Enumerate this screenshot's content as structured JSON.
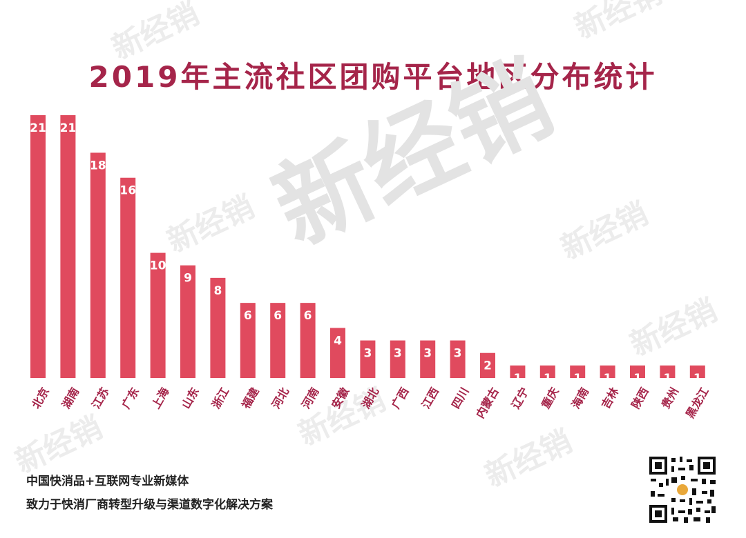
{
  "title": "2019年主流社区团购平台地区分布统计",
  "watermark": "新经销",
  "footer": {
    "line1": "中国快消品+互联网专业新媒体",
    "line2": "致力于快消厂商转型升级与渠道数字化解决方案"
  },
  "colors": {
    "bar": "#e04a5e",
    "title": "#a5254a",
    "label": "#a5254a"
  },
  "chart_data": {
    "type": "bar",
    "title": "2019年主流社区团购平台地区分布统计",
    "xlabel": "",
    "ylabel": "",
    "ylim": [
      0,
      21
    ],
    "grid": false,
    "categories": [
      "北京",
      "湖南",
      "江苏",
      "广东",
      "上海",
      "山东",
      "浙江",
      "福建",
      "河北",
      "河南",
      "安徽",
      "湖北",
      "广西",
      "江西",
      "四川",
      "内蒙古",
      "辽宁",
      "重庆",
      "海南",
      "吉林",
      "陕西",
      "贵州",
      "黑龙江"
    ],
    "values": [
      21,
      21,
      18,
      16,
      10,
      9,
      8,
      6,
      6,
      6,
      4,
      3,
      3,
      3,
      3,
      2,
      1,
      1,
      1,
      1,
      1,
      1,
      1
    ]
  }
}
